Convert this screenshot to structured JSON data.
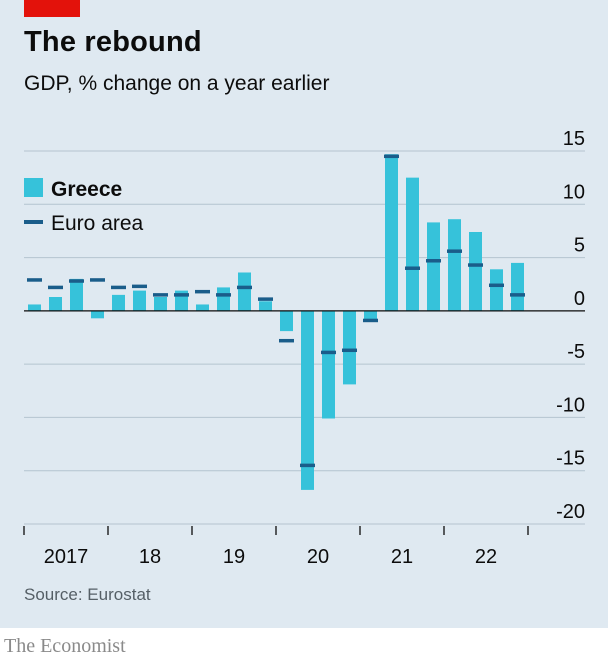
{
  "header": {
    "title": "The rebound",
    "subtitle": "GDP, % change on a year earlier"
  },
  "footer": {
    "source": "Source: Eurostat",
    "brand": "The Economist"
  },
  "colors": {
    "greece": "#36c2da",
    "euro_area": "#1a5d8a",
    "accent_red": "#e3120b",
    "background": "#dfe9f1",
    "gridline": "#b4c4cf"
  },
  "chart_data": {
    "type": "bar",
    "title": "The rebound",
    "subtitle": "GDP, % change on a year earlier",
    "xlabel": "",
    "ylabel": "",
    "ylim": [
      -20,
      15
    ],
    "yticks": [
      15,
      10,
      5,
      0,
      -5,
      -10,
      -15,
      -20
    ],
    "ytick_labels": [
      "15",
      "10",
      "5",
      "0",
      "-5",
      "-10",
      "-15",
      "-20"
    ],
    "y_axis_side": "right",
    "grid": true,
    "legend_placement": "top-left",
    "x_year_labels": [
      "2017",
      "18",
      "19",
      "20",
      "21",
      "22"
    ],
    "categories": [
      "2017 Q1",
      "2017 Q2",
      "2017 Q3",
      "2017 Q4",
      "2018 Q1",
      "2018 Q2",
      "2018 Q3",
      "2018 Q4",
      "2019 Q1",
      "2019 Q2",
      "2019 Q3",
      "2019 Q4",
      "2020 Q1",
      "2020 Q2",
      "2020 Q3",
      "2020 Q4",
      "2021 Q1",
      "2021 Q2",
      "2021 Q3",
      "2021 Q4",
      "2022 Q1",
      "2022 Q2",
      "2022 Q3",
      "2022 Q4"
    ],
    "series": [
      {
        "name": "Greece",
        "kind": "bar",
        "values": [
          0.6,
          1.3,
          3.0,
          -0.7,
          1.5,
          1.9,
          1.3,
          1.9,
          0.6,
          2.2,
          3.6,
          0.9,
          -1.9,
          -16.8,
          -10.1,
          -6.9,
          -1.0,
          14.7,
          12.5,
          8.3,
          8.6,
          7.4,
          3.9,
          4.5
        ]
      },
      {
        "name": "Euro area",
        "kind": "dash",
        "values": [
          2.9,
          2.2,
          2.8,
          2.9,
          2.2,
          2.3,
          1.5,
          1.5,
          1.8,
          1.5,
          2.2,
          1.1,
          -2.8,
          -14.5,
          -3.9,
          -3.7,
          -0.9,
          14.5,
          4.0,
          4.7,
          5.6,
          4.3,
          2.4,
          1.5
        ]
      }
    ]
  }
}
